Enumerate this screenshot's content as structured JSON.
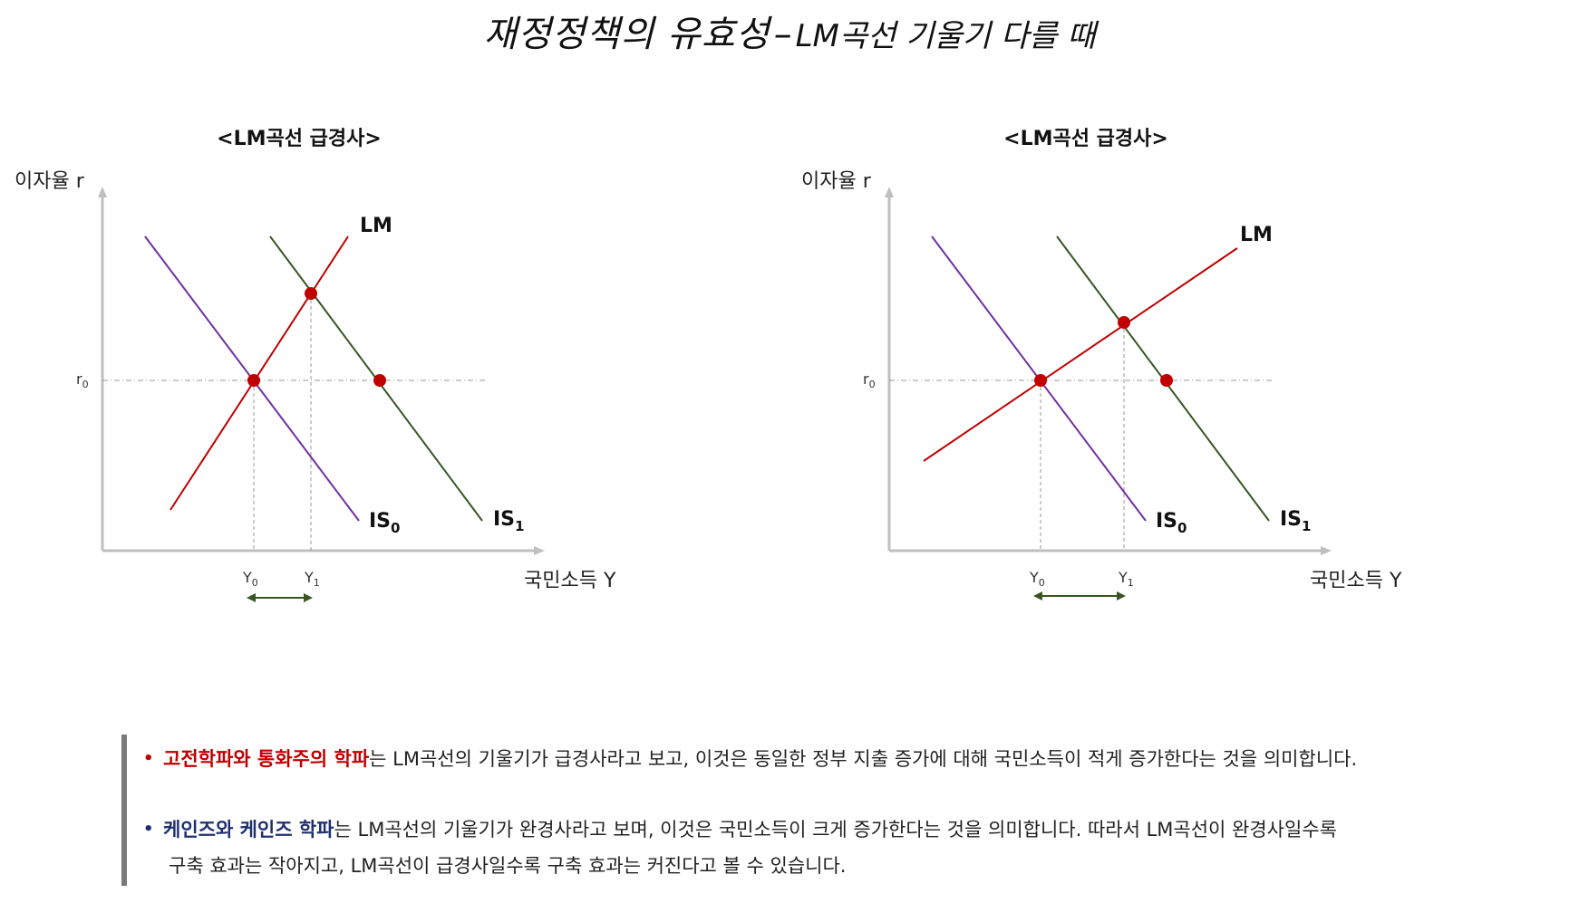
{
  "title": {
    "main": "재정정책의 유효성",
    "dash": "–",
    "sub": "LM곡선 기울기 다를 때"
  },
  "charts": [
    {
      "heading": "<LM곡선 급경사>",
      "y_axis_label": "이자율 r",
      "x_axis_label": "국민소득 Y",
      "r0_label": "r",
      "r0_sub": "0",
      "y0_label": "Y",
      "y0_sub": "0",
      "y1_label": "Y",
      "y1_sub": "1",
      "lm_label": "LM",
      "is0_label": "IS",
      "is0_sub": "0",
      "is1_label": "IS",
      "is1_sub": "1"
    },
    {
      "heading": "<LM곡선 급경사>",
      "y_axis_label": "이자율 r",
      "x_axis_label": "국민소득 Y",
      "r0_label": "r",
      "r0_sub": "0",
      "y0_label": "Y",
      "y0_sub": "0",
      "y1_label": "Y",
      "y1_sub": "1",
      "lm_label": "LM",
      "is0_label": "IS",
      "is0_sub": "0",
      "is1_label": "IS",
      "is1_sub": "1"
    }
  ],
  "colors": {
    "lm": "#c00000",
    "is0": "#7030a0",
    "is1": "#375623",
    "point": "#c00000",
    "arrow": "#375623",
    "axis": "#bfbfbf"
  },
  "notes": {
    "b1_bold": "고전학파와 통화주의 학파",
    "b1_text": "는 LM곡선의 기울기가 급경사라고 보고, 이것은 동일한 정부 지출 증가에 대해 국민소득이 적게 증가한다는 것을 의미합니다.",
    "b2_bold": "케인즈와 케인즈 학파",
    "b2_text": "는 LM곡선의 기울기가 완경사라고 보며, 이것은 국민소득이 크게 증가한다는 것을 의미합니다. 따라서 LM곡선이 완경사일수록",
    "b2_cont": "구축 효과는 작아지고, LM곡선이 급경사일수록 구축 효과는 커진다고 볼 수 있습니다.",
    "bullet": "•"
  }
}
